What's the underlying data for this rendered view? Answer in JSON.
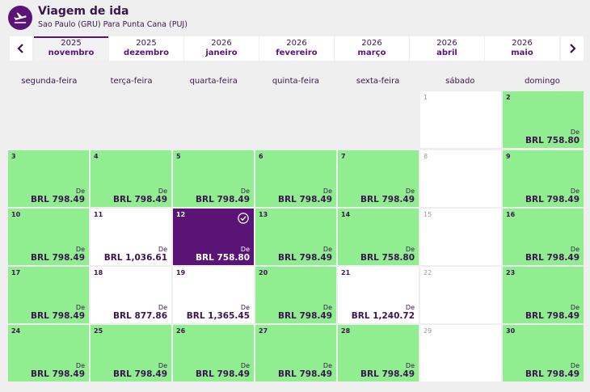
{
  "header": {
    "title": "Viagem de ida",
    "subtitle": "Sao Paulo (GRU) Para Punta Cana (PUJ)"
  },
  "nav": {
    "prev_icon": "chevron-left-icon",
    "next_icon": "chevron-right-icon"
  },
  "months": [
    {
      "year": "2025",
      "name": "novembro",
      "active": true
    },
    {
      "year": "2025",
      "name": "dezembro"
    },
    {
      "year": "2026",
      "name": "janeiro"
    },
    {
      "year": "2026",
      "name": "fevereiro"
    },
    {
      "year": "2026",
      "name": "março"
    },
    {
      "year": "2026",
      "name": "abril"
    },
    {
      "year": "2026",
      "name": "maio"
    }
  ],
  "weekdays": [
    "segunda-feira",
    "terça-feira",
    "quarta-feira",
    "quinta-feira",
    "sexta-feira",
    "sábado",
    "domingo"
  ],
  "from_label": "De",
  "colors": {
    "available": "#90ee90",
    "selected": "#5a1475",
    "unavailable": "#ffffff",
    "text": "#3b1450"
  },
  "days": [
    {
      "day": "1",
      "status": "white"
    },
    {
      "day": "2",
      "status": "green",
      "price": "BRL 758.80"
    },
    {
      "day": "3",
      "status": "green",
      "price": "BRL 798.49"
    },
    {
      "day": "4",
      "status": "green",
      "price": "BRL 798.49"
    },
    {
      "day": "5",
      "status": "green",
      "price": "BRL 798.49"
    },
    {
      "day": "6",
      "status": "green",
      "price": "BRL 798.49"
    },
    {
      "day": "7",
      "status": "green",
      "price": "BRL 798.49"
    },
    {
      "day": "8",
      "status": "white"
    },
    {
      "day": "9",
      "status": "green",
      "price": "BRL 798.49"
    },
    {
      "day": "10",
      "status": "green",
      "price": "BRL 798.49"
    },
    {
      "day": "11",
      "status": "white",
      "price": "BRL 1,036.61"
    },
    {
      "day": "12",
      "status": "selected",
      "price": "BRL 758.80"
    },
    {
      "day": "13",
      "status": "green",
      "price": "BRL 798.49"
    },
    {
      "day": "14",
      "status": "green",
      "price": "BRL 758.80"
    },
    {
      "day": "15",
      "status": "white"
    },
    {
      "day": "16",
      "status": "green",
      "price": "BRL 798.49"
    },
    {
      "day": "17",
      "status": "green",
      "price": "BRL 798.49"
    },
    {
      "day": "18",
      "status": "white",
      "price": "BRL 877.86"
    },
    {
      "day": "19",
      "status": "white",
      "price": "BRL 1,365.45"
    },
    {
      "day": "20",
      "status": "green",
      "price": "BRL 798.49"
    },
    {
      "day": "21",
      "status": "white",
      "price": "BRL 1,240.72"
    },
    {
      "day": "22",
      "status": "white"
    },
    {
      "day": "23",
      "status": "green",
      "price": "BRL 798.49"
    },
    {
      "day": "24",
      "status": "green",
      "price": "BRL 798.49"
    },
    {
      "day": "25",
      "status": "green",
      "price": "BRL 798.49"
    },
    {
      "day": "26",
      "status": "green",
      "price": "BRL 798.49"
    },
    {
      "day": "27",
      "status": "green",
      "price": "BRL 798.49"
    },
    {
      "day": "28",
      "status": "green",
      "price": "BRL 798.49"
    },
    {
      "day": "29",
      "status": "white"
    },
    {
      "day": "30",
      "status": "green",
      "price": "BRL 798.49"
    }
  ]
}
